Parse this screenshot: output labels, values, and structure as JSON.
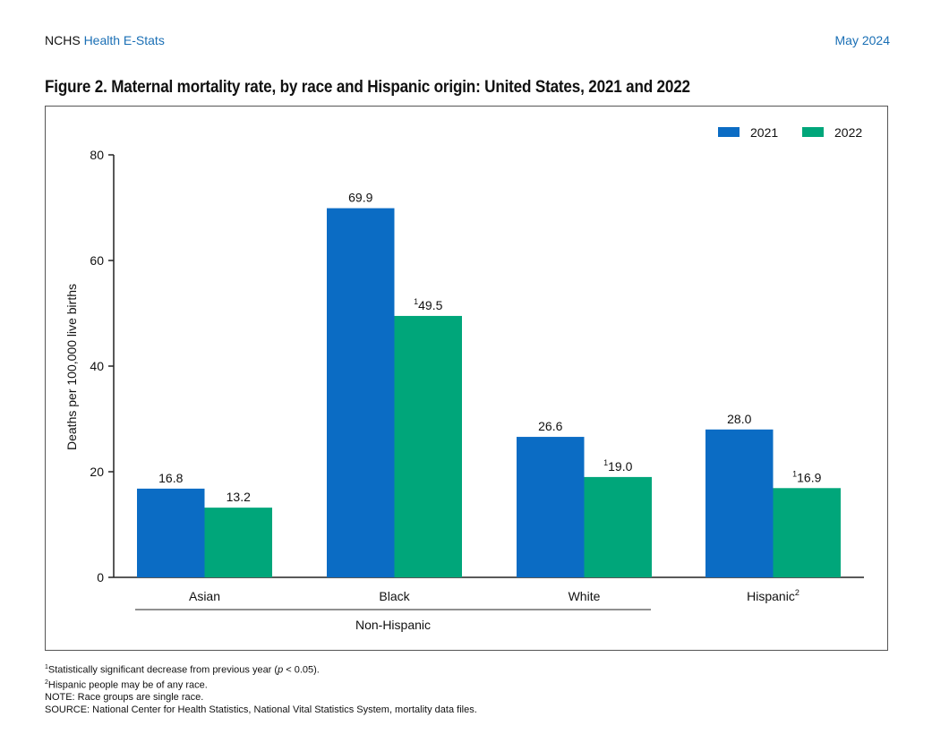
{
  "header": {
    "org": "NCHS",
    "series": "Health E-Stats",
    "date": "May 2024"
  },
  "title": "Figure 2. Maternal mortality rate, by race and Hispanic origin: United States, 2021 and 2022",
  "chart_data": {
    "type": "bar",
    "ylabel": "Deaths per 100,000 live births",
    "ylim": [
      0,
      80
    ],
    "yticks": [
      0,
      20,
      40,
      60,
      80
    ],
    "grid": false,
    "legend_position": "top-right",
    "categories": [
      "Asian",
      "Black",
      "White",
      "Hispanic"
    ],
    "category_footnotes": [
      "",
      "",
      "",
      "2"
    ],
    "group_label": {
      "text": "Non-Hispanic",
      "categories": [
        "Asian",
        "Black",
        "White"
      ]
    },
    "series": [
      {
        "name": "2021",
        "color": "#0b6cc4",
        "values": [
          16.8,
          69.9,
          26.6,
          28.0
        ],
        "footnotes": [
          "",
          "",
          "",
          ""
        ]
      },
      {
        "name": "2022",
        "color": "#00a67a",
        "values": [
          13.2,
          49.5,
          19.0,
          16.9
        ],
        "footnotes": [
          "",
          "1",
          "1",
          "1"
        ]
      }
    ]
  },
  "notes": {
    "fn1_marker": "1",
    "fn1": "Statistically significant decrease from previous year (",
    "fn1_p": "p",
    "fn1_end": " < 0.05).",
    "fn2_marker": "2",
    "fn2": "Hispanic people may be of any race.",
    "note": "NOTE: Race groups are single race.",
    "source": "SOURCE: National Center for Health Statistics, National Vital Statistics System, mortality data files."
  }
}
